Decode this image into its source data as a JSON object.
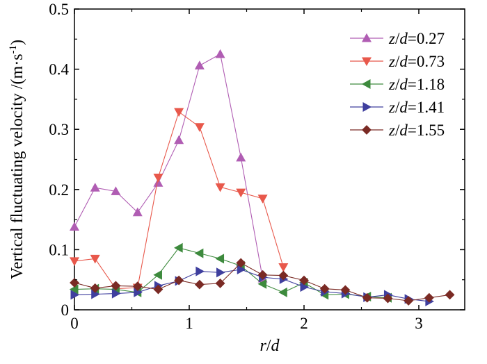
{
  "chart_data": {
    "type": "line",
    "xlabel": "r/d",
    "ylabel": "Vertical fluctuating velocity /(m·s⁻¹)",
    "xlim": [
      0,
      3.4
    ],
    "ylim": [
      0,
      0.5
    ],
    "xticks": [
      "0",
      "1",
      "2",
      "3"
    ],
    "yticks": [
      "0",
      "0.1",
      "0.2",
      "0.3",
      "0.4",
      "0.5"
    ],
    "legend_position": "top-right",
    "series": [
      {
        "name": "z/d=0.27",
        "name_parts": [
          "z",
          "/",
          "d",
          "=0.27"
        ],
        "color": "#b05db3",
        "marker": "triangle-up",
        "x": [
          0.0,
          0.18,
          0.36,
          0.55,
          0.73,
          0.91,
          1.09,
          1.27,
          1.45,
          1.64
        ],
        "y": [
          0.138,
          0.203,
          0.197,
          0.162,
          0.211,
          0.282,
          0.406,
          0.425,
          0.253,
          0.052
        ]
      },
      {
        "name": "z/d=0.73",
        "name_parts": [
          "z",
          "/",
          "d",
          "=0.73"
        ],
        "color": "#e8584b",
        "marker": "triangle-down",
        "x": [
          0.0,
          0.18,
          0.36,
          0.55,
          0.73,
          0.91,
          1.09,
          1.27,
          1.45,
          1.64,
          1.82
        ],
        "y": [
          0.081,
          0.085,
          0.035,
          0.037,
          0.22,
          0.329,
          0.304,
          0.204,
          0.195,
          0.185,
          0.071
        ]
      },
      {
        "name": "z/d=1.18",
        "name_parts": [
          "z",
          "/",
          "d",
          "=1.18"
        ],
        "color": "#3d8a3d",
        "marker": "triangle-left",
        "x": [
          0.0,
          0.18,
          0.36,
          0.55,
          0.73,
          0.91,
          1.09,
          1.27,
          1.45,
          1.64,
          1.82,
          2.0,
          2.18,
          2.36,
          2.55,
          2.73
        ],
        "y": [
          0.034,
          0.035,
          0.034,
          0.029,
          0.058,
          0.103,
          0.094,
          0.085,
          0.073,
          0.043,
          0.029,
          0.045,
          0.025,
          0.026,
          0.022,
          0.02
        ]
      },
      {
        "name": "z/d=1.41",
        "name_parts": [
          "z",
          "/",
          "d",
          "=1.41"
        ],
        "color": "#3f3f9e",
        "marker": "triangle-right",
        "x": [
          0.0,
          0.18,
          0.36,
          0.55,
          0.73,
          0.91,
          1.09,
          1.27,
          1.45,
          1.64,
          1.82,
          2.0,
          2.18,
          2.36,
          2.55,
          2.73,
          2.91,
          3.09
        ],
        "y": [
          0.025,
          0.026,
          0.027,
          0.029,
          0.04,
          0.048,
          0.064,
          0.062,
          0.067,
          0.054,
          0.051,
          0.038,
          0.03,
          0.027,
          0.021,
          0.025,
          0.018,
          0.014
        ]
      },
      {
        "name": "z/d=1.55",
        "name_parts": [
          "z",
          "/",
          "d",
          "=1.55"
        ],
        "color": "#7a2a24",
        "marker": "diamond",
        "x": [
          0.0,
          0.18,
          0.36,
          0.55,
          0.73,
          0.91,
          1.09,
          1.27,
          1.45,
          1.64,
          1.82,
          2.0,
          2.18,
          2.36,
          2.55,
          2.73,
          2.91,
          3.09,
          3.27
        ],
        "y": [
          0.045,
          0.036,
          0.04,
          0.039,
          0.034,
          0.049,
          0.042,
          0.044,
          0.078,
          0.058,
          0.057,
          0.049,
          0.035,
          0.033,
          0.02,
          0.019,
          0.015,
          0.02,
          0.025
        ]
      }
    ]
  }
}
